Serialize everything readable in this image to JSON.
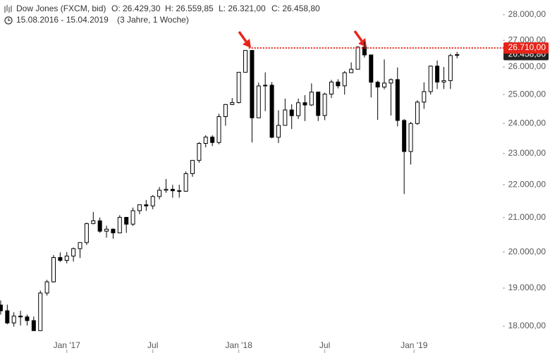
{
  "chart_data": {
    "type": "candlestick",
    "header": {
      "name": "Dow Jones (FXCM, bid)",
      "open": "O: 26.429,30",
      "high": "H: 26.559,85",
      "low": "L: 26.321,00",
      "close": "C: 26.458,80",
      "range": "15.08.2016 - 15.04.2019",
      "span": "(3 Jahre, 1 Woche)"
    },
    "x": [
      0,
      2,
      4,
      6,
      8,
      10,
      12,
      14,
      16,
      18,
      20,
      22,
      24,
      26,
      28,
      30,
      32,
      34,
      36,
      38,
      40,
      42,
      44,
      46,
      48,
      50,
      52,
      54,
      56,
      58,
      60,
      62,
      64,
      66,
      68,
      70,
      72,
      74,
      76,
      78,
      80,
      82,
      84,
      86,
      88,
      90,
      92,
      94,
      96,
      98,
      100,
      102,
      104,
      106,
      108,
      110,
      112,
      114,
      116,
      118,
      120,
      122,
      124,
      126,
      128,
      130,
      132,
      134,
      136,
      138
    ],
    "open": [
      18550,
      18400,
      18085,
      18261,
      18240,
      18145,
      17888,
      18868,
      19170,
      19843,
      19763,
      19885,
      20094,
      20269,
      20821,
      20903,
      20597,
      20656,
      20548,
      21007,
      20804,
      21206,
      21384,
      21350,
      21638,
      21830,
      21858,
      21814,
      21798,
      22350,
      22773,
      23329,
      23539,
      23358,
      24232,
      24652,
      24719,
      25803,
      26617,
      24191,
      25310,
      25336,
      23533,
      23933,
      24463,
      24263,
      24715,
      24635,
      25090,
      24271,
      25019,
      25451,
      25313,
      25790,
      25917,
      26743,
      26447,
      25444,
      25270,
      25413,
      25538,
      24101,
      23062,
      23996,
      24737,
      25106,
      26031,
      25450,
      25502,
      26429.3
    ],
    "high": [
      18670,
      18560,
      18360,
      18400,
      18300,
      18250,
      18934,
      19225,
      19911,
      19987,
      19999,
      20125,
      20270,
      20851,
      21169,
      21000,
      20760,
      20680,
      21070,
      21010,
      21300,
      21390,
      21530,
      21680,
      21930,
      22180,
      22000,
      22000,
      22420,
      22780,
      23370,
      23600,
      23600,
      24330,
      24670,
      24880,
      25810,
      26620,
      26600,
      25430,
      25800,
      25450,
      24450,
      24860,
      24660,
      24860,
      24980,
      25400,
      25100,
      25070,
      25530,
      25550,
      25850,
      26170,
      26770,
      26950,
      26440,
      25500,
      26280,
      25580,
      25980,
      24150,
      24050,
      24800,
      25440,
      26050,
      26240,
      26000,
      26490,
      26559.85
    ],
    "low": [
      18300,
      18050,
      17990,
      18020,
      18020,
      17880,
      17883,
      18800,
      19150,
      19720,
      19680,
      19730,
      19830,
      20200,
      20800,
      20550,
      20410,
      20380,
      20540,
      20550,
      20750,
      21100,
      21200,
      21250,
      21550,
      21750,
      21600,
      21600,
      21790,
      22250,
      22700,
      23200,
      23240,
      23300,
      23920,
      24630,
      24690,
      25790,
      23360,
      24200,
      24420,
      23500,
      23340,
      23920,
      23810,
      24150,
      24080,
      24600,
      24080,
      24110,
      24880,
      25220,
      25000,
      25800,
      25910,
      26350,
      24900,
      24120,
      25190,
      24270,
      23900,
      21713,
      22640,
      23950,
      24500,
      25000,
      25200,
      25200,
      25200,
      26321
    ],
    "close": [
      18400,
      18085,
      18261,
      18240,
      18145,
      17888,
      18868,
      19170,
      19843,
      19763,
      19885,
      20094,
      20269,
      20821,
      20903,
      20597,
      20656,
      20548,
      21007,
      20804,
      21206,
      21384,
      21350,
      21638,
      21830,
      21858,
      21814,
      21798,
      22350,
      22773,
      23329,
      23539,
      23358,
      24232,
      24652,
      24719,
      25803,
      26617,
      24191,
      25310,
      25336,
      23533,
      23933,
      24463,
      24263,
      24715,
      24635,
      25090,
      24271,
      25019,
      25451,
      25313,
      25790,
      25917,
      26743,
      26447,
      25444,
      25270,
      25413,
      25538,
      24101,
      23062,
      23996,
      24737,
      25106,
      26031,
      25450,
      25502,
      26424,
      26458.8
    ],
    "up_color": "#ffffff",
    "down_color": "#000000",
    "xlim": [
      -0.2,
      151.6
    ],
    "xticks": [
      {
        "value": 20,
        "label": "Jan '17"
      },
      {
        "value": 46,
        "label": "Jul"
      },
      {
        "value": 72,
        "label": "Jan '18"
      },
      {
        "value": 98,
        "label": "Jul"
      },
      {
        "value": 125,
        "label": "Jan '19"
      }
    ],
    "ylim": [
      17330,
      28590
    ],
    "log_y": true,
    "grid": false,
    "yticks": [
      {
        "value": 18000,
        "label": "18.000,00"
      },
      {
        "value": 19000,
        "label": "19.000,00"
      },
      {
        "value": 20000,
        "label": "20.000,00"
      },
      {
        "value": 21000,
        "label": "21.000,00"
      },
      {
        "value": 22000,
        "label": "22.000,00"
      },
      {
        "value": 23000,
        "label": "23.000,00"
      },
      {
        "value": 24000,
        "label": "24.000,00"
      },
      {
        "value": 25000,
        "label": "25.000,00"
      },
      {
        "value": 26000,
        "label": "26.000,00"
      },
      {
        "value": 27000,
        "label": "27.000,00"
      },
      {
        "value": 28000,
        "label": "28.000,00"
      }
    ],
    "last_price": {
      "value": 26458.8,
      "label": "26.458,80",
      "color": "#222222"
    },
    "resistance": {
      "value": 26710,
      "label": "26.710,00",
      "color": "#e8241a",
      "x_start": 75
    }
  }
}
